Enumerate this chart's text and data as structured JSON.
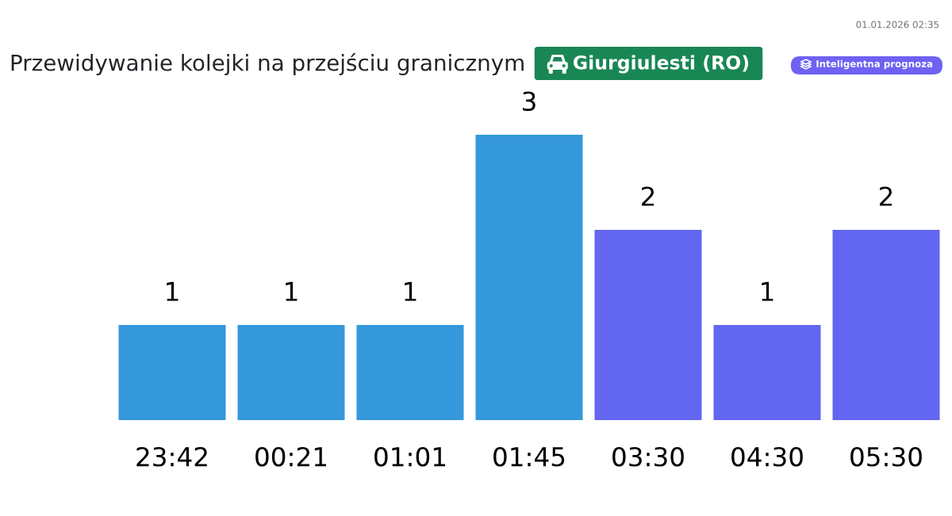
{
  "chart_data": {
    "type": "bar",
    "title": "Przewidywanie kolejki na przejściu granicznym",
    "subtitle": "Giurgiulesti (RO)",
    "categories": [
      "23:42",
      "00:21",
      "01:01",
      "01:45",
      "03:30",
      "04:30",
      "05:30"
    ],
    "values": [
      1,
      1,
      1,
      3,
      2,
      1,
      2
    ],
    "colors": [
      "#3498db",
      "#3498db",
      "#3498db",
      "#3498db",
      "#6366f1",
      "#6366f1",
      "#6366f1"
    ],
    "data_labels": true,
    "tick_labels": "x",
    "annotations": [
      "01.01.2026 02:35",
      "Inteligentna prognoza"
    ]
  }
}
